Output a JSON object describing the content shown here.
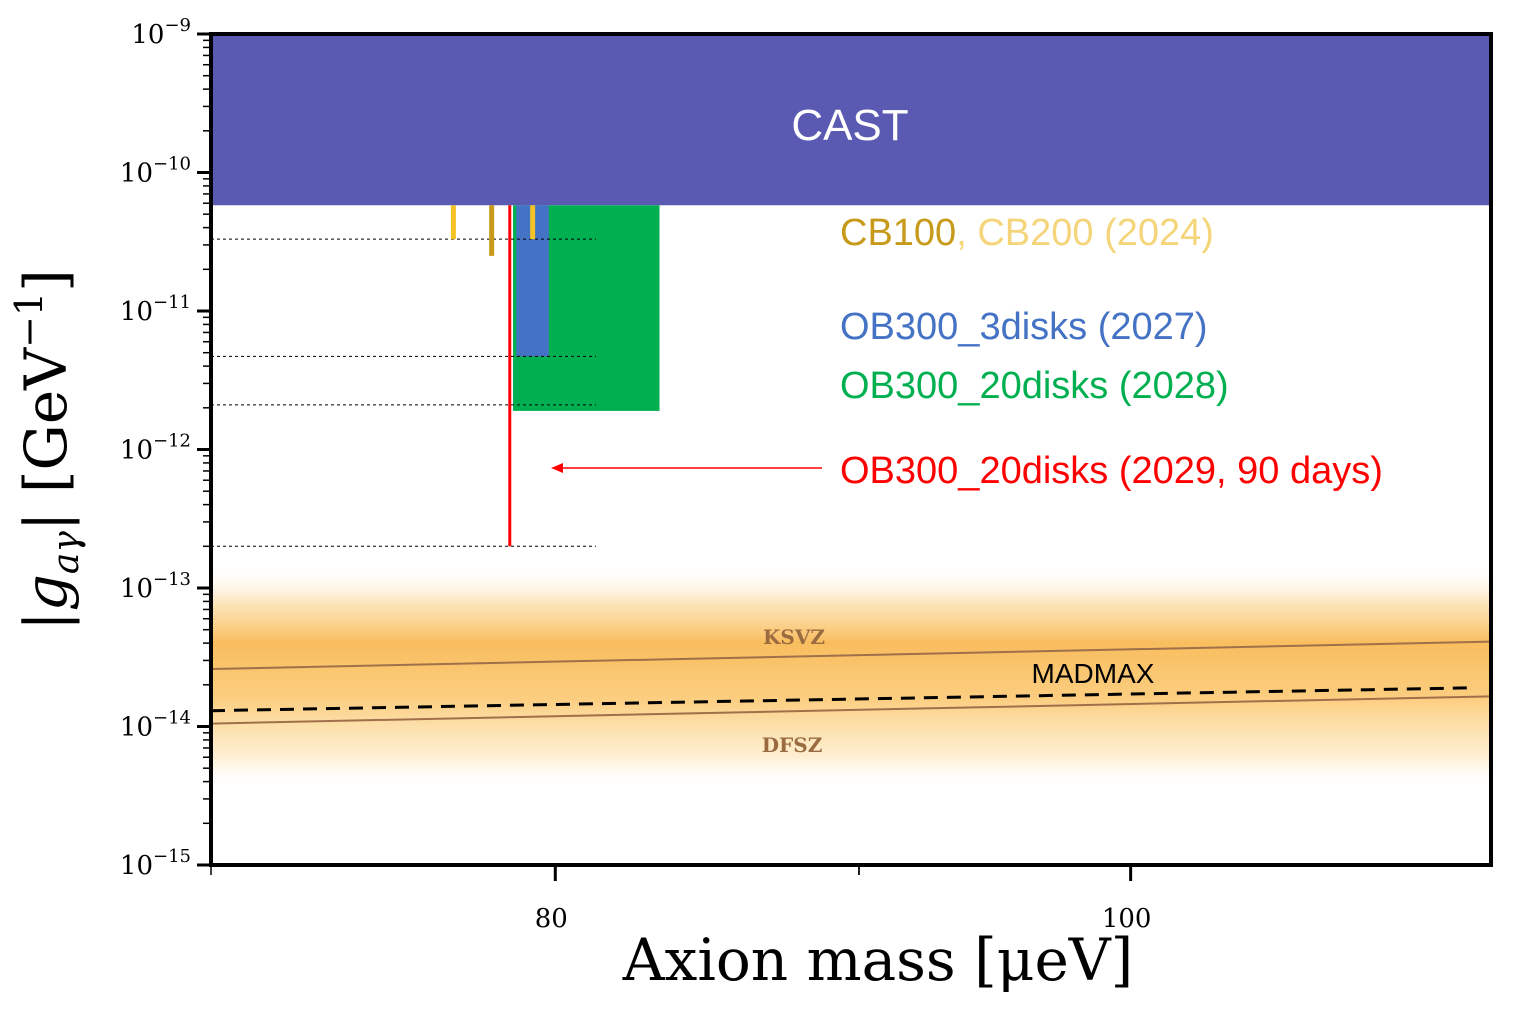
{
  "chart_data": {
    "type": "area",
    "title": "",
    "xlabel": "Axion mass [μeV]",
    "ylabel": "|g_aγ| [GeV⁻¹]",
    "xscale": "log",
    "yscale": "log",
    "xlim": [
      70,
      115
    ],
    "ylim": [
      1e-15,
      1e-09
    ],
    "x_ticks": [
      {
        "value": 80,
        "label": "80"
      },
      {
        "value": 100,
        "label": "100"
      }
    ],
    "x_minor_ticks": [
      90
    ],
    "y_ticks": [
      {
        "value": 1e-09,
        "exp": "−9"
      },
      {
        "value": 1e-10,
        "exp": "−10"
      },
      {
        "value": 1e-11,
        "exp": "−11"
      },
      {
        "value": 1e-12,
        "exp": "−12"
      },
      {
        "value": 1e-13,
        "exp": "−13"
      },
      {
        "value": 1e-14,
        "exp": "−14"
      },
      {
        "value": 1e-15,
        "exp": "−15"
      }
    ],
    "tick_base": "10",
    "regions": [
      {
        "name": "CAST",
        "label": "CAST",
        "x_range": [
          70,
          115
        ],
        "y_range": [
          5.8e-11,
          1e-09
        ],
        "color": "#5a5ab2"
      },
      {
        "name": "OB300_20disks (2028)",
        "x_range": [
          78.7,
          83.3
        ],
        "y_range": [
          1.9e-12,
          5.8e-11
        ],
        "color": "#00b050"
      },
      {
        "name": "OB300_3disks (2027)",
        "x_range": [
          78.8,
          79.8
        ],
        "y_range": [
          4.7e-12,
          5.8e-11
        ],
        "color": "#4472c4"
      }
    ],
    "exclusion_lines": [
      {
        "name": "CB200 (2024)",
        "x": 76.9,
        "y_range": [
          3.3e-11,
          5.8e-11
        ],
        "color": "#f5c226"
      },
      {
        "name": "CB100",
        "x": 78.05,
        "y_range": [
          2.5e-11,
          5.8e-11
        ],
        "color": "#c89a1a"
      },
      {
        "name": "CB200 (2024)",
        "x": 79.3,
        "y_range": [
          3.3e-11,
          5.8e-11
        ],
        "color": "#f5c226"
      },
      {
        "name": "OB300_20disks (2029, 90 days)",
        "x": 78.6,
        "y_range": [
          2e-13,
          5.8e-11
        ],
        "color": "#ff0000"
      }
    ],
    "reference_levels": [
      3.3e-11,
      4.7e-12,
      2.1e-12,
      2e-13
    ],
    "model_lines": [
      {
        "name": "KSVZ",
        "label": "KSVZ",
        "x": [
          70,
          115
        ],
        "y": [
          2.6e-14,
          4.1e-14
        ],
        "color": "#a0704a"
      },
      {
        "name": "DFSZ",
        "label": "DFSZ",
        "x": [
          70,
          115
        ],
        "y": [
          1.05e-14,
          1.65e-14
        ],
        "color": "#a0704a"
      },
      {
        "name": "MADMAX",
        "label": "MADMAX",
        "x": [
          70,
          114
        ],
        "y": [
          1.3e-14,
          1.9e-14
        ],
        "color": "#000000",
        "style": "dashed"
      }
    ],
    "qcd_band": {
      "name": "QCD axion band",
      "y_range": [
        3.5e-15,
        1.5e-13
      ],
      "color": "#f8b64c"
    },
    "annotations": {
      "cb100": {
        "text": "CB100",
        "color": "#c89a1a"
      },
      "cb200": {
        "text": ", CB200 (2024)",
        "color": "#f5d57a"
      },
      "ob3": {
        "text": "OB300_3disks (2027)",
        "color": "#4472c4"
      },
      "ob20": {
        "text": "OB300_20disks (2028)",
        "color": "#00b050"
      },
      "ob20_90": {
        "text": "OB300_20disks (2029, 90 days)",
        "color": "#ff0000"
      }
    }
  }
}
